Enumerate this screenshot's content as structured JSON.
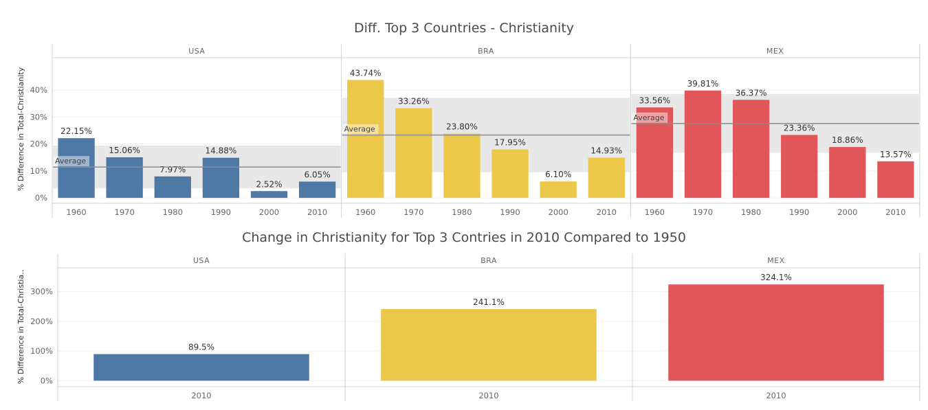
{
  "colors": {
    "USA": "#4e79a7",
    "BRA": "#ebc74a",
    "MEX": "#e15759",
    "band": "#e8e8e8",
    "line": "#8c8c8c"
  },
  "chart_data": [
    {
      "type": "bar",
      "title": "Diff. Top 3 Countries - Christianity",
      "ylabel": "% Difference in Total-Christianity",
      "ylim": [
        -2,
        52
      ],
      "yticks": [
        0,
        10,
        20,
        30,
        40
      ],
      "ytick_labels": [
        "0%",
        "10%",
        "20%",
        "30%",
        "40%"
      ],
      "reference_label": "Average",
      "panels": [
        {
          "name": "USA",
          "categories": [
            "1960",
            "1970",
            "1980",
            "1990",
            "2000",
            "2010"
          ],
          "values": [
            22.15,
            15.06,
            7.97,
            14.88,
            2.52,
            6.05
          ],
          "labels": [
            "22.15%",
            "15.06%",
            "7.97%",
            "14.88%",
            "2.52%",
            "6.05%"
          ],
          "average": 11.44,
          "band": [
            3.5,
            19.4
          ]
        },
        {
          "name": "BRA",
          "categories": [
            "1960",
            "1970",
            "1980",
            "1990",
            "2000",
            "2010"
          ],
          "values": [
            43.74,
            33.26,
            23.8,
            17.95,
            6.1,
            14.93
          ],
          "labels": [
            "43.74%",
            "33.26%",
            "23.80%",
            "17.95%",
            "6.10%",
            "14.93%"
          ],
          "average": 23.3,
          "band": [
            9.5,
            37.1
          ]
        },
        {
          "name": "MEX",
          "categories": [
            "1960",
            "1970",
            "1980",
            "1990",
            "2000",
            "2010"
          ],
          "values": [
            33.56,
            39.81,
            36.37,
            23.36,
            18.86,
            13.57
          ],
          "labels": [
            "33.56%",
            "39.81%",
            "36.37%",
            "23.36%",
            "18.86%",
            "13.57%"
          ],
          "average": 27.59,
          "band": [
            16.7,
            38.5
          ]
        }
      ]
    },
    {
      "type": "bar",
      "title": "Change in Christianity for Top 3 Contries in 2010 Compared to 1950",
      "ylabel": "% Difference in Total-Christia..",
      "ylim": [
        -20,
        380
      ],
      "yticks": [
        0,
        100,
        200,
        300
      ],
      "ytick_labels": [
        "0%",
        "100%",
        "200%",
        "300%"
      ],
      "panels": [
        {
          "name": "USA",
          "categories": [
            "2010"
          ],
          "values": [
            89.5
          ],
          "labels": [
            "89.5%"
          ]
        },
        {
          "name": "BRA",
          "categories": [
            "2010"
          ],
          "values": [
            241.1
          ],
          "labels": [
            "241.1%"
          ]
        },
        {
          "name": "MEX",
          "categories": [
            "2010"
          ],
          "values": [
            324.1
          ],
          "labels": [
            "324.1%"
          ]
        }
      ]
    }
  ]
}
